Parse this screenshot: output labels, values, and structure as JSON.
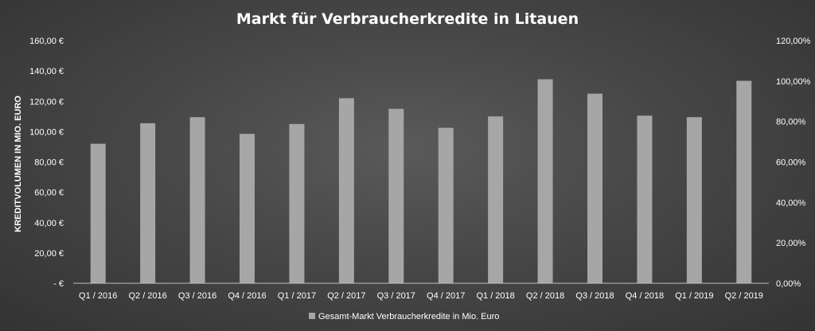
{
  "chart_data": {
    "type": "bar",
    "title": "Markt für Verbraucherkredite in Litauen",
    "ylabel": "KREDITVOLUMEN IN MIO. EURO",
    "xlabel": "",
    "categories": [
      "Q1 / 2016",
      "Q2 / 2016",
      "Q3 / 2016",
      "Q4 / 2016",
      "Q1 / 2017",
      "Q2 / 2017",
      "Q3 / 2017",
      "Q4 / 2017",
      "Q1 / 2018",
      "Q2 / 2018",
      "Q3 / 2018",
      "Q4 / 2018",
      "Q1 / 2019",
      "Q2 / 2019"
    ],
    "series": [
      {
        "name": "Gesamt-Markt Verbraucherkredite in Mio. Euro",
        "values": [
          92,
          105.5,
          109.5,
          98.5,
          105,
          122,
          115,
          102.5,
          110,
          134.5,
          125,
          110.5,
          109.5,
          133.5
        ],
        "color": "#a6a6a6"
      }
    ],
    "ylim": [
      0,
      160
    ],
    "y_ticks": [
      "-  €",
      "20,00 €",
      "40,00 €",
      "60,00 €",
      "80,00 €",
      "100,00 €",
      "120,00 €",
      "140,00 €",
      "160,00 €"
    ],
    "y2lim": [
      0,
      1.2
    ],
    "y2_ticks": [
      "0,00%",
      "20,00%",
      "40,00%",
      "60,00%",
      "80,00%",
      "100,00%",
      "120,00%"
    ],
    "grid": false,
    "legend": "bottom-center",
    "colors": {
      "background": "#474747",
      "bar": "#a6a6a6",
      "axis": "#bfbfbf",
      "text": "#ffffff"
    }
  }
}
